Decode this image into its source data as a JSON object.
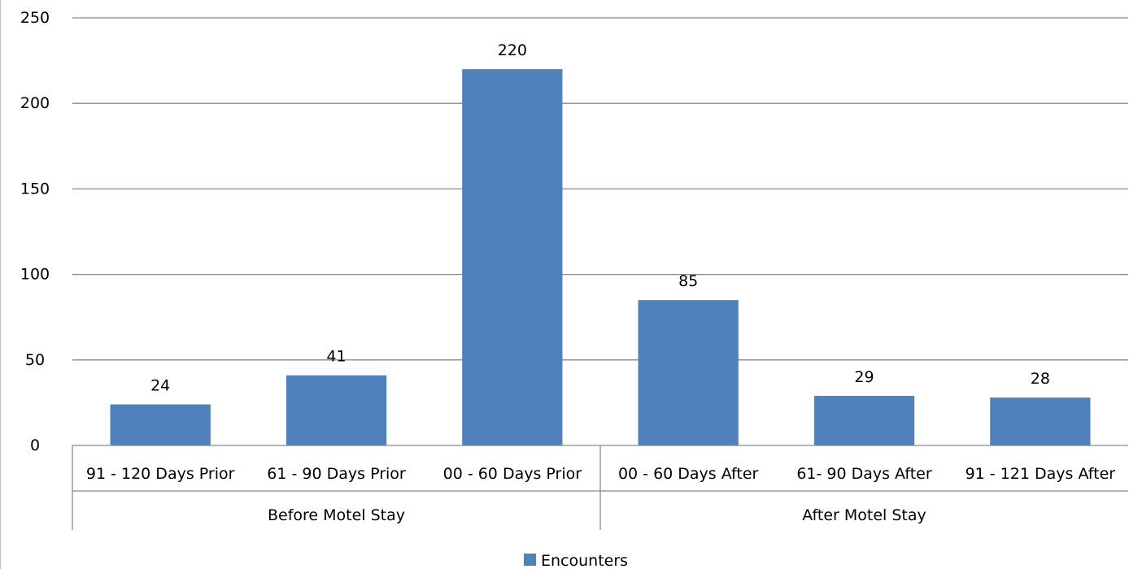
{
  "chart_data": {
    "type": "bar",
    "categories": [
      "91 - 120 Days Prior",
      "61 - 90 Days Prior",
      "00 - 60 Days Prior",
      "00 - 60 Days After",
      "61- 90 Days After",
      "91 - 121 Days After"
    ],
    "groups": [
      {
        "label": "Before Motel Stay",
        "categories": [
          0,
          1,
          2
        ]
      },
      {
        "label": "After Motel Stay",
        "categories": [
          3,
          4,
          5
        ]
      }
    ],
    "series": [
      {
        "name": "Encounters",
        "values": [
          24,
          41,
          220,
          85,
          29,
          28
        ],
        "color": "#4F81BD"
      }
    ],
    "ylim": [
      0,
      250
    ],
    "yticks": [
      0,
      50,
      100,
      150,
      200,
      250
    ],
    "grid": true,
    "data_labels": true,
    "legend": "bottom",
    "title": "",
    "xlabel": "",
    "ylabel": ""
  }
}
